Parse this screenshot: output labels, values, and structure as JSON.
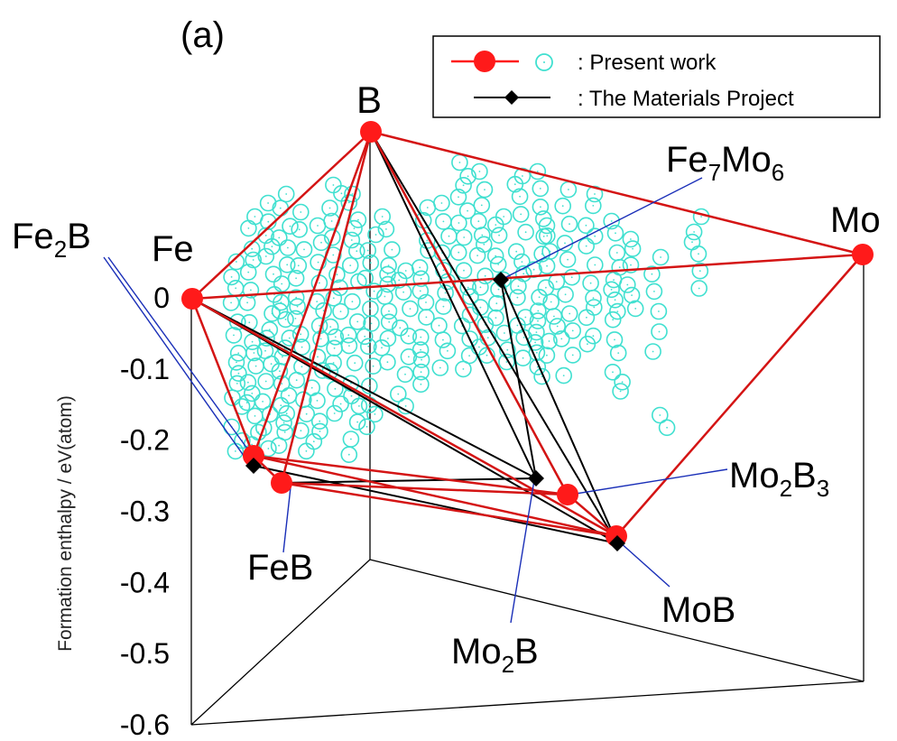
{
  "panel_label": "(a)",
  "colors": {
    "present": "#ff1a1a",
    "present_edge": "#d41414",
    "materials_project": "#000000",
    "candidates": "#40e0d0",
    "callout": "#1a2fb8",
    "frame": "#000000"
  },
  "legend": {
    "present_label": ": Present work",
    "mp_label": ": The Materials Project"
  },
  "labels": {
    "B": "B",
    "Mo": "Mo",
    "Fe": "Fe",
    "Fe2B": {
      "a": "Fe",
      "sub": "2",
      "b": "B"
    },
    "FeB": "FeB",
    "Fe7Mo6": {
      "a": "Fe",
      "sub1": "7",
      "b": "Mo",
      "sub2": "6"
    },
    "Mo2B3": {
      "a": "Mo",
      "sub1": "2",
      "b": "B",
      "sub2": "3"
    },
    "MoB": "MoB",
    "Mo2B": {
      "a": "Mo",
      "sub": "2",
      "b": "B"
    }
  },
  "chart_data": {
    "type": "scatter",
    "title": "",
    "zlabel": "Formation enthalpy / eV(atom)",
    "zlim": [
      -0.6,
      0
    ],
    "z_ticks": [
      "0",
      "-0.1",
      "-0.2",
      "-0.3",
      "-0.4",
      "-0.5",
      "-0.6"
    ],
    "composition_space": [
      "Fe",
      "B",
      "Mo"
    ],
    "series": [
      {
        "name": "Present work",
        "marker": "filled-circle",
        "points": [
          {
            "label": "Fe",
            "formation_enthalpy": 0.0
          },
          {
            "label": "B",
            "formation_enthalpy": 0.0
          },
          {
            "label": "Mo",
            "formation_enthalpy": 0.0
          },
          {
            "label": "Fe2B",
            "formation_enthalpy": -0.22
          },
          {
            "label": "FeB",
            "formation_enthalpy": -0.26
          },
          {
            "label": "Mo2B3",
            "formation_enthalpy": -0.28
          },
          {
            "label": "MoB",
            "formation_enthalpy": -0.34
          }
        ]
      },
      {
        "name": "The Materials Project",
        "marker": "diamond",
        "points": [
          {
            "label": "Fe2B",
            "formation_enthalpy": -0.23
          },
          {
            "label": "Fe7Mo6",
            "formation_enthalpy": -0.02
          },
          {
            "label": "Mo2B",
            "formation_enthalpy": -0.25
          },
          {
            "label": "MoB",
            "formation_enthalpy": -0.34
          }
        ]
      }
    ],
    "legend_position": "top-right",
    "grid": false
  }
}
